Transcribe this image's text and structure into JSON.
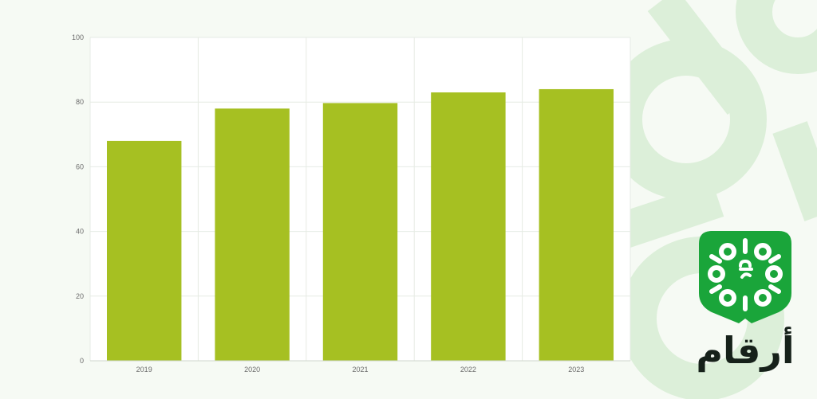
{
  "colors": {
    "background": "#f6faf4",
    "bar": "#a6c022",
    "grid": "#e6ebe4",
    "axis_text": "#6b6b6b",
    "brand_green": "#1aa53a",
    "deco_green": "#dcefd9",
    "wordmark": "#16211a"
  },
  "brand": {
    "wordmark": "أرقام",
    "icon": "arqaam-logo-icon"
  },
  "chart_data": {
    "type": "bar",
    "categories": [
      "2019",
      "2020",
      "2021",
      "2022",
      "2023"
    ],
    "values": [
      68,
      78,
      79.7,
      83,
      84
    ],
    "title": "",
    "xlabel": "",
    "ylabel": "",
    "ylim": [
      0,
      100
    ],
    "yticks": [
      "0",
      "20",
      "40",
      "60",
      "80",
      "100"
    ],
    "grid": true,
    "legend": "none"
  }
}
